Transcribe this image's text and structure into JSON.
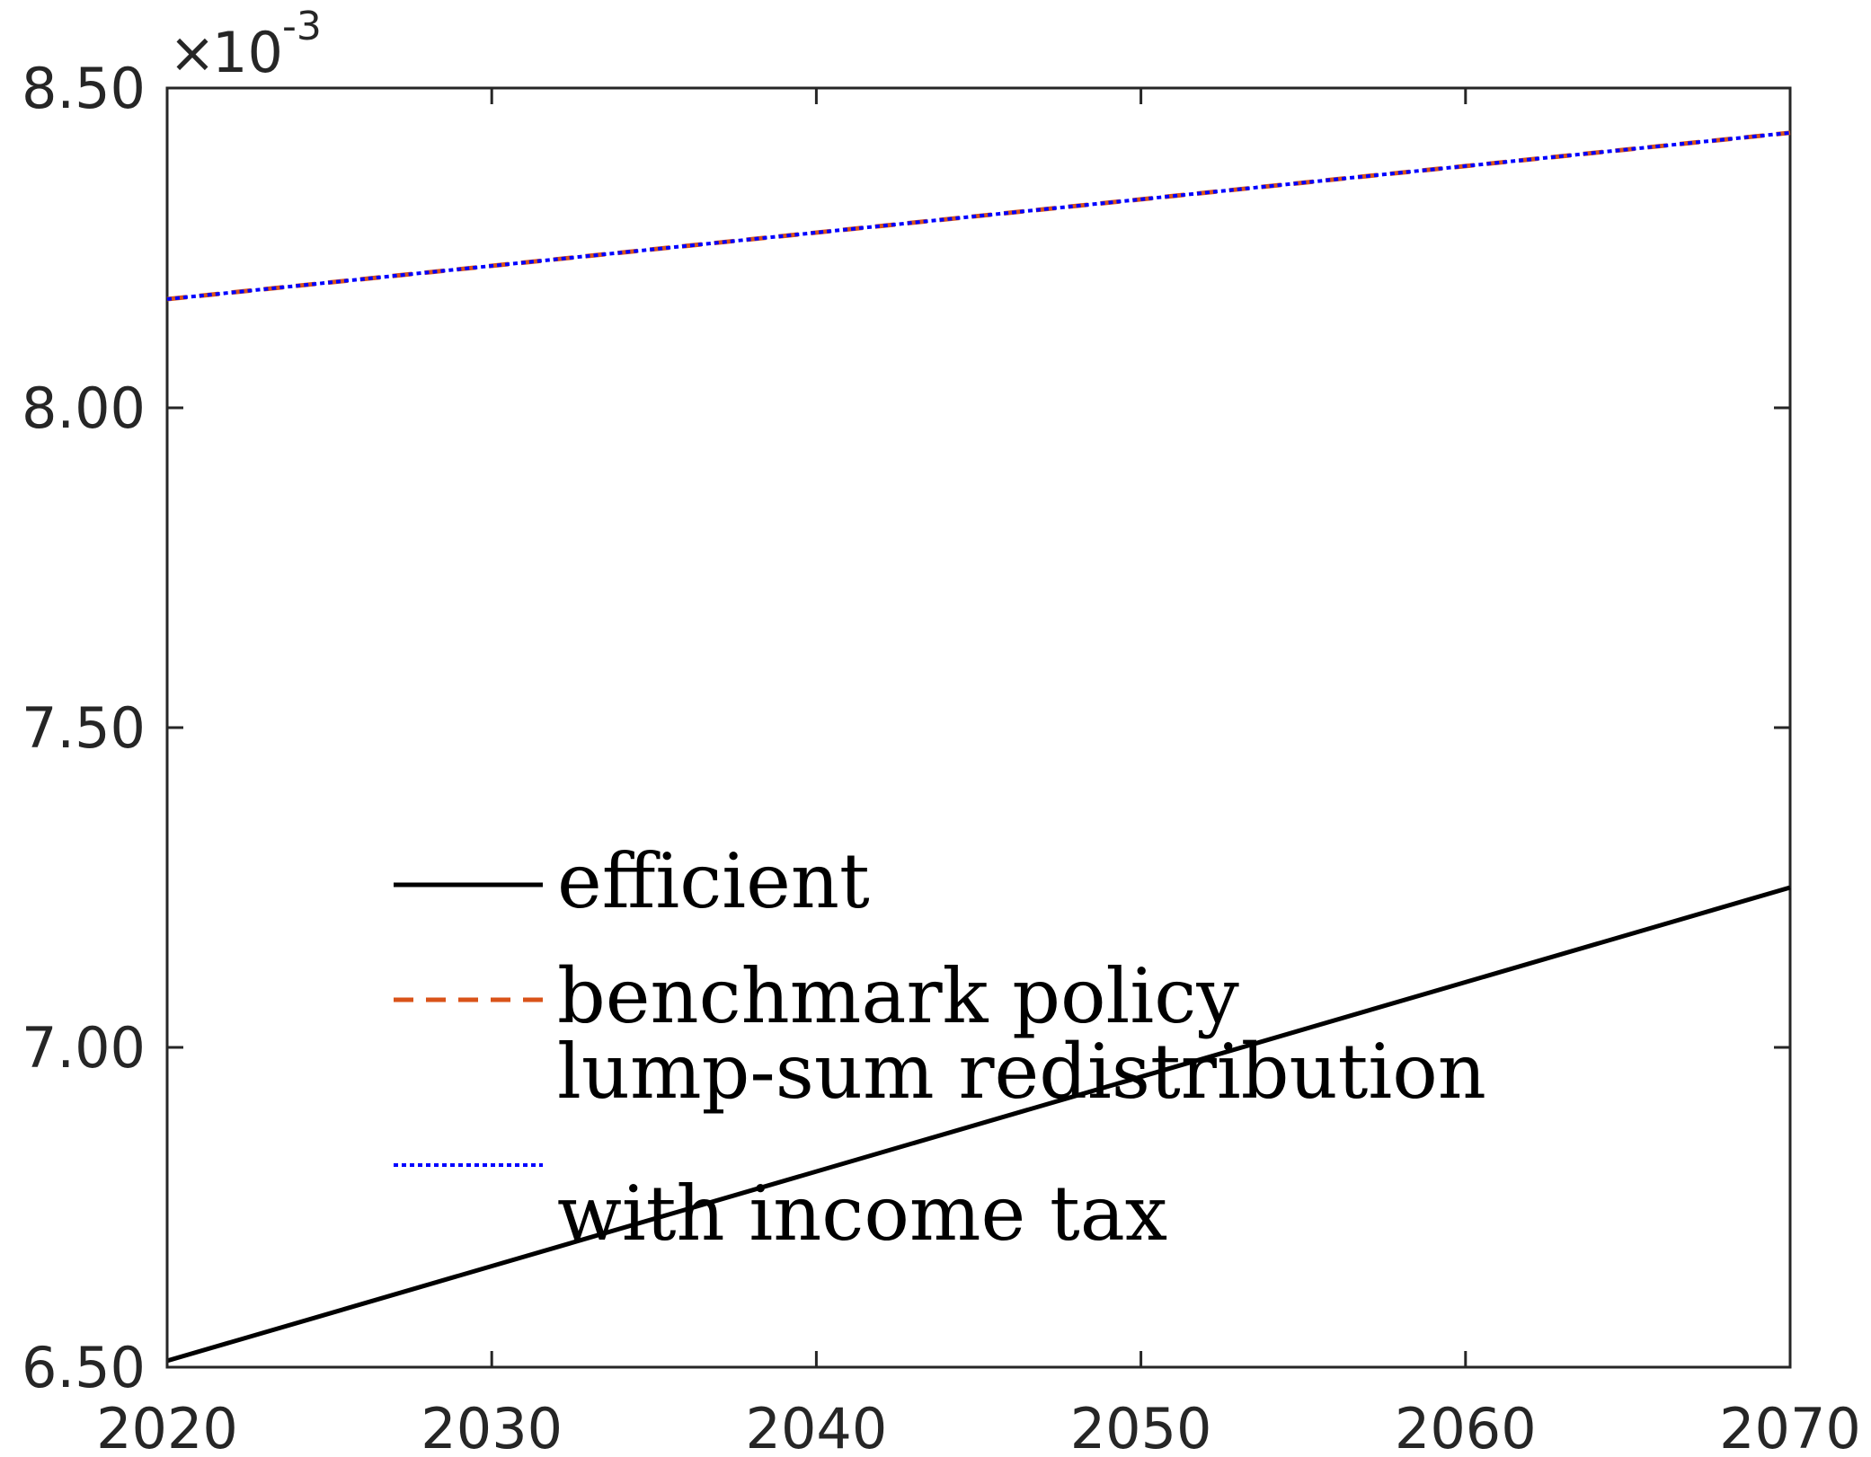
{
  "chart_data": {
    "type": "line",
    "title": "",
    "xlabel": "",
    "ylabel": "",
    "xlim": [
      2020,
      2070
    ],
    "ylim": [
      6.5,
      8.5
    ],
    "x_ticks": [
      2020,
      2030,
      2040,
      2050,
      2060,
      2070
    ],
    "y_ticks": [
      6.5,
      7.0,
      7.5,
      8.0,
      8.5
    ],
    "x_tick_labels": [
      "2020",
      "2030",
      "2040",
      "2050",
      "2060",
      "2070"
    ],
    "y_tick_labels": [
      "6.50",
      "7.00",
      "7.50",
      "8.00",
      "8.50"
    ],
    "y_multiplier": {
      "times": "×",
      "base": "10",
      "exponent": "-3"
    },
    "grid": false,
    "legend_position": "bottom-center",
    "x": [
      2020,
      2070
    ],
    "series": [
      {
        "name": "efficient",
        "values": [
          6.51,
          7.25
        ],
        "color": "#000000",
        "style": "solid"
      },
      {
        "name": "benchmark policy",
        "values": [
          8.17,
          8.43
        ],
        "color": "#D95319",
        "style": "dashed"
      },
      {
        "name": "lump-sum redistribution with income tax",
        "values": [
          8.17,
          8.43
        ],
        "color": "#0000FF",
        "style": "dotted"
      }
    ],
    "legend": {
      "entries": [
        {
          "lines": [
            "efficient"
          ]
        },
        {
          "lines": [
            "benchmark policy"
          ]
        },
        {
          "lines": [
            "lump-sum redistribution",
            "with income tax"
          ]
        }
      ]
    }
  }
}
